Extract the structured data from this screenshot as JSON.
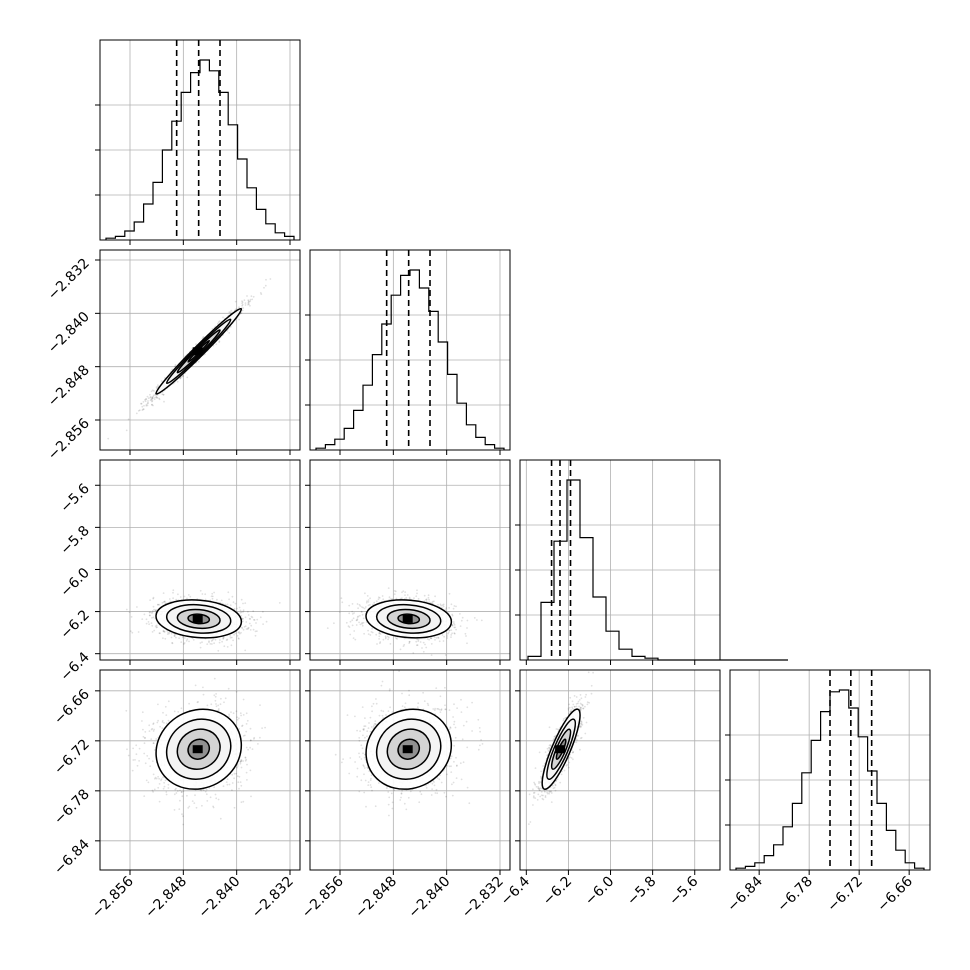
{
  "chart_data": {
    "type": "corner",
    "grid": true,
    "parameters": [
      {
        "range": [
          -2.8605,
          -2.8305
        ],
        "ticks": [
          -2.856,
          -2.848,
          -2.84,
          -2.832
        ],
        "tick_labels": [
          "−2.856",
          "−2.848",
          "−2.840",
          "−2.832"
        ],
        "mean": -2.8457,
        "sigma": 0.0032,
        "quantiles": [
          -2.849,
          -2.8457,
          -2.8425
        ]
      },
      {
        "range": [
          -2.8605,
          -2.8305
        ],
        "ticks": [
          -2.856,
          -2.848,
          -2.84,
          -2.832
        ],
        "tick_labels": [
          "−2.856",
          "−2.848",
          "−2.840",
          "−2.832"
        ],
        "mean": -2.8457,
        "sigma": 0.0032,
        "quantiles": [
          -2.849,
          -2.8457,
          -2.8425
        ]
      },
      {
        "range": [
          -6.43,
          -5.48
        ],
        "ticks": [
          -6.4,
          -6.2,
          -6.0,
          -5.8,
          -5.6
        ],
        "tick_labels": [
          "−6.4",
          "−6.2",
          "−6.0",
          "−5.8",
          "−5.6"
        ],
        "mean": -6.235,
        "sigma": 0.045,
        "quantiles": [
          -6.28,
          -6.24,
          -6.19
        ]
      },
      {
        "range": [
          -6.875,
          -6.635
        ],
        "ticks": [
          -6.84,
          -6.78,
          -6.72,
          -6.66
        ],
        "tick_labels": [
          "−6.84",
          "−6.78",
          "−6.72",
          "−6.66"
        ],
        "mean": -6.73,
        "sigma": 0.024,
        "quantiles": [
          -6.755,
          -6.73,
          -6.705
        ]
      }
    ],
    "histograms": [
      [
        0.01,
        0.02,
        0.05,
        0.1,
        0.2,
        0.32,
        0.5,
        0.66,
        0.82,
        0.93,
        1.0,
        0.94,
        0.82,
        0.64,
        0.45,
        0.29,
        0.17,
        0.09,
        0.04,
        0.02
      ],
      [
        0.01,
        0.03,
        0.06,
        0.12,
        0.22,
        0.36,
        0.53,
        0.7,
        0.86,
        0.97,
        1.0,
        0.9,
        0.77,
        0.6,
        0.42,
        0.26,
        0.14,
        0.07,
        0.03,
        0.01
      ],
      [
        0.02,
        0.32,
        0.66,
        1.0,
        0.68,
        0.35,
        0.16,
        0.06,
        0.02,
        0.01,
        0.0,
        0.0,
        0.0,
        0.0,
        0.0,
        0.0,
        0.0,
        0.0,
        0.0,
        0.0
      ],
      [
        0.01,
        0.02,
        0.04,
        0.08,
        0.14,
        0.24,
        0.37,
        0.54,
        0.72,
        0.88,
        0.99,
        1.0,
        0.9,
        0.74,
        0.55,
        0.37,
        0.22,
        0.11,
        0.04,
        0.01
      ]
    ],
    "pairs": [
      {
        "x": 0,
        "y": 1,
        "correlation": 0.985
      },
      {
        "x": 0,
        "y": 2,
        "correlation": -0.15
      },
      {
        "x": 1,
        "y": 2,
        "correlation": -0.15
      },
      {
        "x": 0,
        "y": 3,
        "correlation": 0.1
      },
      {
        "x": 1,
        "y": 3,
        "correlation": 0.1
      },
      {
        "x": 2,
        "y": 3,
        "correlation": 0.85
      }
    ]
  }
}
